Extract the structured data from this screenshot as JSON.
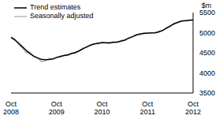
{
  "chart_data": {
    "type": "line",
    "y_label": "$m",
    "categories": [
      "Oct 2008",
      null,
      null,
      null,
      null,
      null,
      null,
      null,
      null,
      null,
      null,
      null,
      "Oct 2009",
      null,
      null,
      null,
      null,
      null,
      null,
      null,
      null,
      null,
      null,
      null,
      "Oct 2010",
      null,
      null,
      null,
      null,
      null,
      null,
      null,
      null,
      null,
      null,
      null,
      "Oct 2011",
      null,
      null,
      null,
      null,
      null,
      null,
      null,
      null,
      null,
      null,
      null,
      "Oct 2012"
    ],
    "series": [
      {
        "name": "Trend estimates",
        "color": "#000000",
        "values": [
          4880,
          4820,
          4740,
          4650,
          4560,
          4480,
          4420,
          4370,
          4340,
          4330,
          4335,
          4350,
          4380,
          4410,
          4430,
          4450,
          4480,
          4510,
          4550,
          4600,
          4650,
          4690,
          4720,
          4740,
          4750,
          4750,
          4750,
          4760,
          4770,
          4790,
          4820,
          4860,
          4900,
          4940,
          4970,
          4980,
          4990,
          4995,
          5000,
          5020,
          5060,
          5110,
          5170,
          5220,
          5260,
          5290,
          5300,
          5310,
          5320
        ]
      },
      {
        "name": "Seasonally adjusted",
        "color": "#a6a6a6",
        "values": [
          4900,
          4850,
          4700,
          4620,
          4500,
          4520,
          4400,
          4380,
          4280,
          4300,
          4360,
          4330,
          4400,
          4390,
          4450,
          4430,
          4500,
          4490,
          4560,
          4620,
          4640,
          4700,
          4730,
          4720,
          4770,
          4740,
          4730,
          4780,
          4750,
          4810,
          4800,
          4880,
          4890,
          4960,
          4950,
          5000,
          4980,
          5000,
          4990,
          5040,
          5040,
          5140,
          5150,
          5240,
          5250,
          5300,
          5290,
          5320,
          5310
        ]
      }
    ],
    "ylim": [
      3500,
      5500
    ],
    "yticks": [
      3500,
      4000,
      4500,
      5000,
      5500
    ],
    "legend": "upper left"
  }
}
